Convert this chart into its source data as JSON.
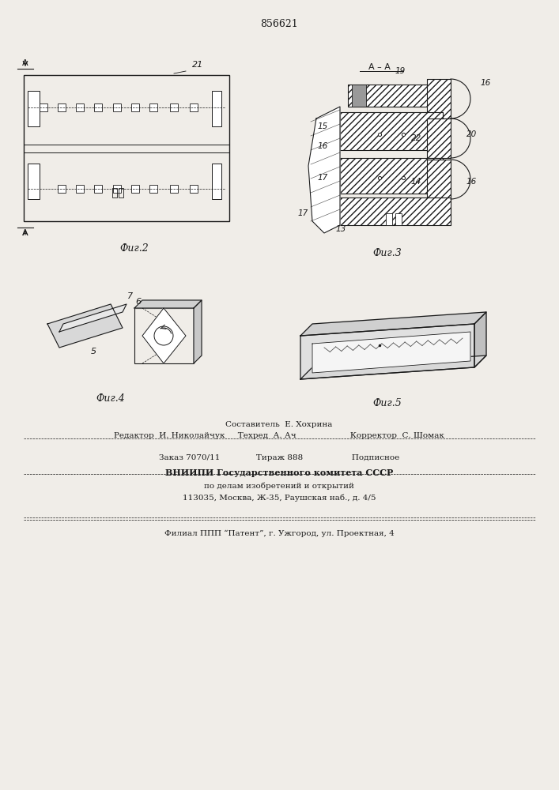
{
  "title": "856621",
  "bg_color": "#f0ede8",
  "line_color": "#1a1a1a",
  "hatch_color": "#1a1a1a",
  "fig2_caption": "Фиг.2",
  "fig3_caption": "Фиг.3",
  "fig4_caption": "Фиг.4",
  "fig5_caption": "Фиг.5",
  "footer_lines": [
    "Составитель  Е. Хохрина",
    "Редактор  И. Николайчук     Техред  А. Ач                     Корректор  С. Шомак",
    "Заказ 7070/11              Тираж 888                   Подписное",
    "ВНИИПИ Государственного комитета СССР",
    "по делам изобретений и открытий",
    "113035, Москва, Ж-35, Раушская наб., д. 4/5",
    "Филиал ППП “Патент”, г. Ужгород, ул. Проектная, 4"
  ]
}
